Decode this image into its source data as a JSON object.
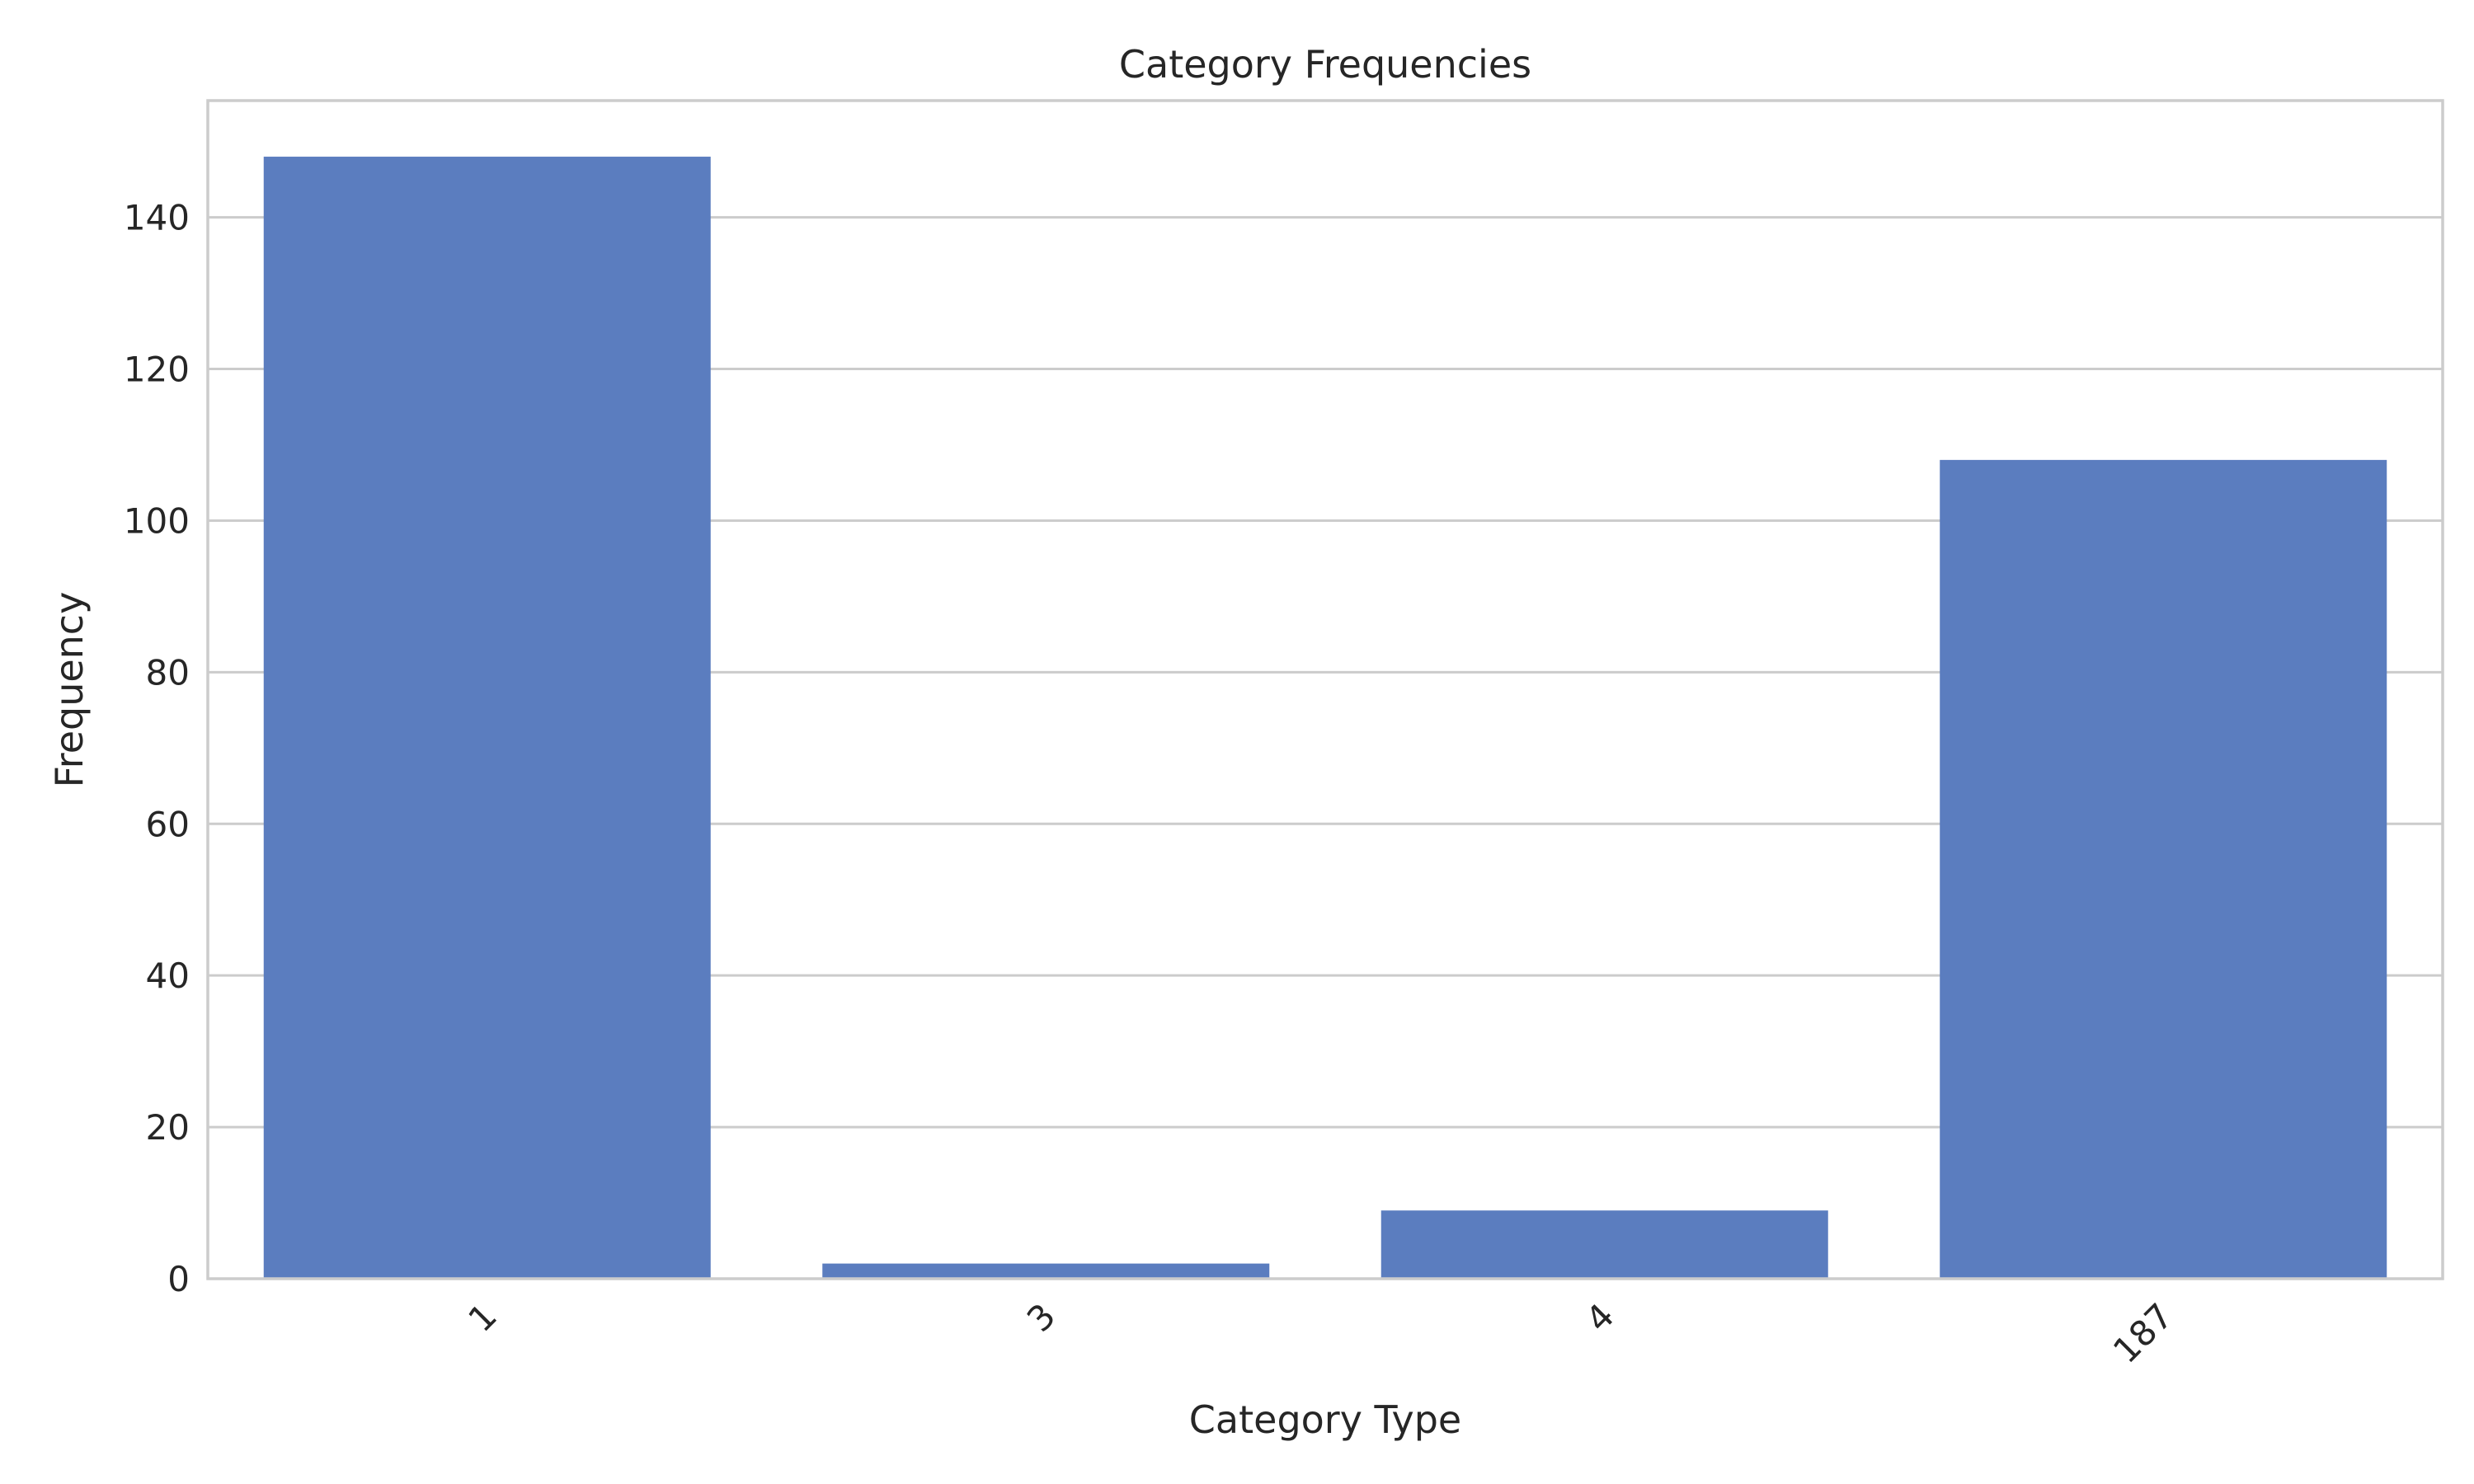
{
  "chart_data": {
    "type": "bar",
    "title": "Category Frequencies",
    "xlabel": "Category Type",
    "ylabel": "Frequency",
    "categories": [
      "1",
      "3",
      "4",
      "187"
    ],
    "values": [
      148,
      2,
      9,
      108
    ],
    "ylim": [
      0,
      155.4
    ],
    "yticks": [
      0,
      20,
      40,
      60,
      80,
      100,
      120,
      140
    ],
    "grid": "horizontal",
    "bar_color": "#5b7dbf",
    "grid_color": "#cccccc",
    "x_tick_rotation": -45
  }
}
